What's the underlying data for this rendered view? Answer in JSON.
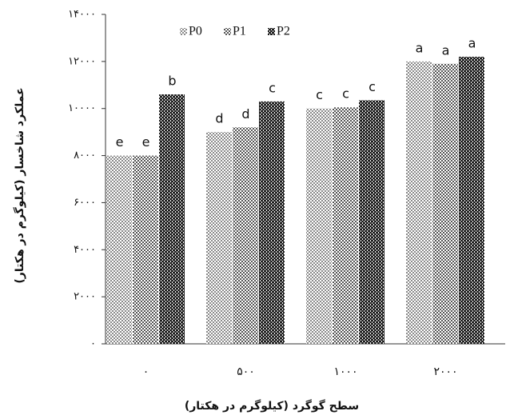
{
  "chart_data": {
    "type": "bar",
    "ylabel": "عملکرد شاخسار (کیلوگرم در هکتار)",
    "xlabel": "سطح گوگرد (کیلوگرم در هکتار)",
    "categories": [
      "۰",
      "۵۰۰",
      "۱۰۰۰",
      "۲۰۰۰"
    ],
    "series": [
      {
        "name": "P0",
        "color": "#8a8a8a",
        "values": [
          8000,
          9000,
          10000,
          12000
        ],
        "letters": [
          "e",
          "d",
          "c",
          "a"
        ]
      },
      {
        "name": "P1",
        "color": "#555555",
        "values": [
          8000,
          9200,
          10050,
          11900
        ],
        "letters": [
          "e",
          "d",
          "c",
          "a"
        ]
      },
      {
        "name": "P2",
        "color": "#1e1e1e",
        "values": [
          10600,
          10300,
          10350,
          12200
        ],
        "letters": [
          "b",
          "c",
          "c",
          "a"
        ]
      }
    ],
    "ylim": [
      0,
      14000
    ],
    "yticks": [
      {
        "value": 0,
        "label": "۰"
      },
      {
        "value": 2000,
        "label": "۲۰۰۰"
      },
      {
        "value": 4000,
        "label": "۴۰۰۰"
      },
      {
        "value": 6000,
        "label": "۶۰۰۰"
      },
      {
        "value": 8000,
        "label": "۸۰۰۰"
      },
      {
        "value": 10000,
        "label": "۱۰۰۰۰"
      },
      {
        "value": 12000,
        "label": "۱۲۰۰۰"
      },
      {
        "value": 14000,
        "label": "۱۴۰۰۰"
      }
    ],
    "legend": "top"
  }
}
